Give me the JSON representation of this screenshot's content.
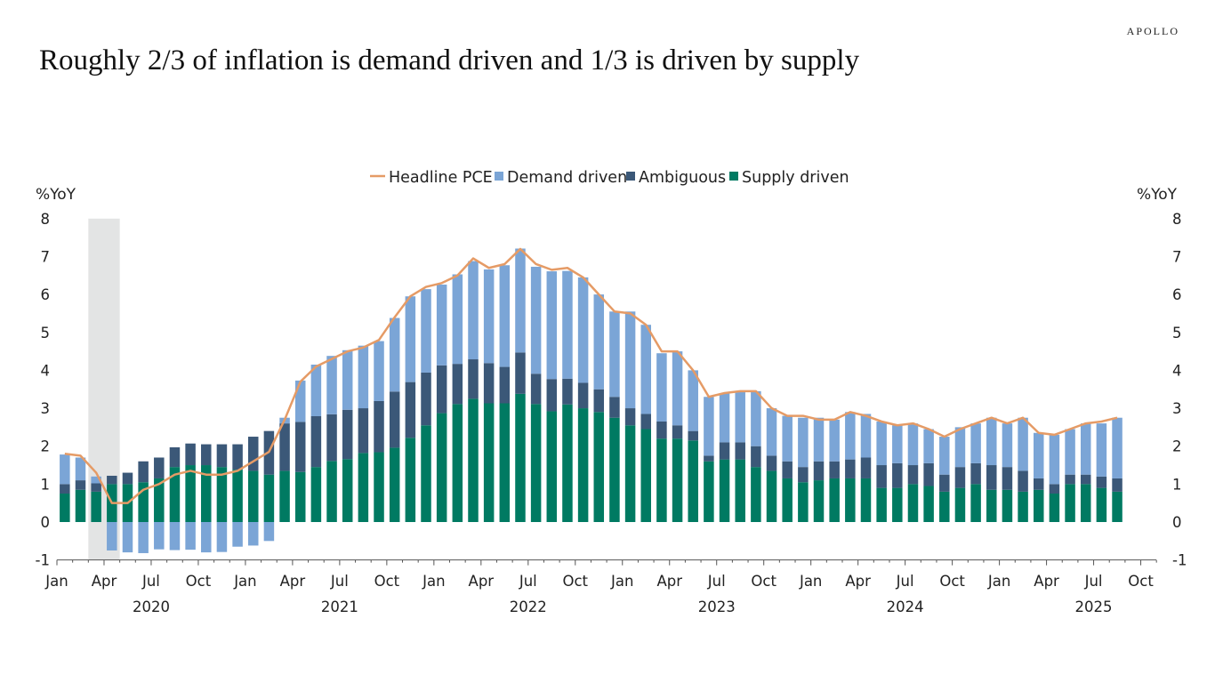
{
  "header": {
    "title": "Roughly 2/3 of inflation is demand driven and 1/3 is driven by supply",
    "logo": "APOLLO"
  },
  "chart_data": {
    "type": "bar",
    "stacked": true,
    "title": "",
    "ylabel_left": "%YoY",
    "ylabel_right": "%YoY",
    "ylim": [
      -1,
      8
    ],
    "yticks": [
      "-1",
      "0",
      "1",
      "2",
      "3",
      "4",
      "5",
      "6",
      "7",
      "8"
    ],
    "grid": false,
    "legend_position": "top-center",
    "start_month": "2020-01",
    "x_month_labels": [
      "Jan",
      "Apr",
      "Jul",
      "Oct"
    ],
    "x_year_labels": [
      "2020",
      "2021",
      "2022",
      "2023",
      "2024",
      "2025"
    ],
    "x_end_label": "Oct",
    "shaded_period": [
      "2020-03",
      "2020-04"
    ],
    "colors": {
      "headline": "#E59B66",
      "demand": "#7BA5D6",
      "ambiguous": "#3B5878",
      "supply": "#007A62",
      "shade": "#E3E4E4"
    },
    "series": [
      {
        "name": "Supply driven",
        "key": "supply",
        "values": [
          0.75,
          0.85,
          0.8,
          1.0,
          1.0,
          1.05,
          1.15,
          1.45,
          1.5,
          1.5,
          1.45,
          1.38,
          1.35,
          1.25,
          1.35,
          1.32,
          1.45,
          1.61,
          1.66,
          1.82,
          1.84,
          1.96,
          2.22,
          2.55,
          2.87,
          3.11,
          3.25,
          3.13,
          3.13,
          3.38,
          3.11,
          2.92,
          3.1,
          3.0,
          2.9,
          2.75,
          2.55,
          2.45,
          2.2,
          2.2,
          2.15,
          1.6,
          1.65,
          1.65,
          1.45,
          1.35,
          1.15,
          1.05,
          1.1,
          1.15,
          1.15,
          1.15,
          0.9,
          0.9,
          1.0,
          0.95,
          0.8,
          0.9,
          1.0,
          0.85,
          0.85,
          0.8,
          0.85,
          0.75,
          1.0,
          1.0,
          0.9,
          0.8
        ]
      },
      {
        "name": "Ambiguous",
        "key": "ambiguous",
        "values": [
          0.25,
          0.25,
          0.22,
          0.22,
          0.3,
          0.55,
          0.55,
          0.52,
          0.57,
          0.55,
          0.6,
          0.67,
          0.9,
          1.15,
          1.25,
          1.32,
          1.34,
          1.23,
          1.3,
          1.18,
          1.35,
          1.48,
          1.47,
          1.39,
          1.26,
          1.06,
          1.04,
          1.06,
          0.96,
          1.09,
          0.8,
          0.85,
          0.68,
          0.67,
          0.6,
          0.55,
          0.45,
          0.4,
          0.45,
          0.35,
          0.25,
          0.15,
          0.45,
          0.45,
          0.55,
          0.4,
          0.45,
          0.4,
          0.5,
          0.45,
          0.5,
          0.55,
          0.6,
          0.65,
          0.5,
          0.6,
          0.45,
          0.55,
          0.55,
          0.65,
          0.6,
          0.55,
          0.3,
          0.25,
          0.25,
          0.25,
          0.3,
          0.35
        ]
      },
      {
        "name": "Demand driven",
        "key": "demand",
        "values": [
          0.78,
          0.6,
          0.18,
          -0.75,
          -0.8,
          -0.82,
          -0.72,
          -0.74,
          -0.73,
          -0.8,
          -0.79,
          -0.65,
          -0.62,
          -0.5,
          0.15,
          1.09,
          1.36,
          1.54,
          1.57,
          1.65,
          1.58,
          1.94,
          2.26,
          2.2,
          2.13,
          2.36,
          2.59,
          2.47,
          2.68,
          2.74,
          2.82,
          2.84,
          2.84,
          2.78,
          2.5,
          2.25,
          2.55,
          2.35,
          1.8,
          1.95,
          1.6,
          1.55,
          1.3,
          1.35,
          1.45,
          1.25,
          1.2,
          1.3,
          1.15,
          1.1,
          1.25,
          1.15,
          1.15,
          1.0,
          1.1,
          0.9,
          1.0,
          1.05,
          1.05,
          1.25,
          1.15,
          1.4,
          1.2,
          1.3,
          1.2,
          1.35,
          1.4,
          1.6
        ]
      },
      {
        "name": "Headline PCE",
        "key": "headline",
        "type": "line",
        "values": [
          1.8,
          1.75,
          1.3,
          0.5,
          0.5,
          0.85,
          1.0,
          1.25,
          1.35,
          1.25,
          1.25,
          1.35,
          1.6,
          1.85,
          2.7,
          3.7,
          4.1,
          4.3,
          4.5,
          4.6,
          4.8,
          5.4,
          5.95,
          6.2,
          6.3,
          6.5,
          6.95,
          6.7,
          6.8,
          7.2,
          6.8,
          6.65,
          6.7,
          6.45,
          6.0,
          5.55,
          5.5,
          5.2,
          4.5,
          4.5,
          4.0,
          3.3,
          3.4,
          3.45,
          3.45,
          3.0,
          2.8,
          2.8,
          2.7,
          2.7,
          2.9,
          2.8,
          2.65,
          2.55,
          2.6,
          2.45,
          2.25,
          2.45,
          2.6,
          2.75,
          2.6,
          2.75,
          2.35,
          2.3,
          2.45,
          2.6,
          2.65,
          2.75
        ]
      }
    ],
    "legend": [
      "Headline PCE",
      "Demand driven",
      "Ambiguous",
      "Supply driven"
    ]
  }
}
